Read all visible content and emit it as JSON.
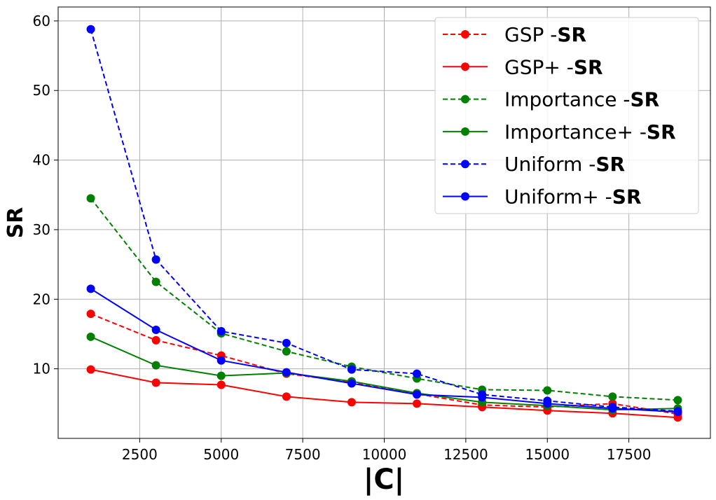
{
  "chart_data": {
    "type": "line",
    "title": "",
    "xlabel": "|C|",
    "ylabel": "SR",
    "xlim": [
      0,
      20000
    ],
    "ylim": [
      0,
      62
    ],
    "xticks": [
      2500,
      5000,
      7500,
      10000,
      12500,
      15000,
      17500
    ],
    "yticks": [
      10,
      20,
      30,
      40,
      50,
      60
    ],
    "grid": true,
    "legend_position": "top-right",
    "x": [
      1000,
      3000,
      5000,
      7000,
      9000,
      11000,
      13000,
      15000,
      17000,
      19000
    ],
    "series": [
      {
        "name": "GSP -",
        "name_bold": "SR",
        "color": "#ff0000",
        "dashed": true,
        "values": [
          17.9,
          14.1,
          11.9,
          9.3,
          8.1,
          6.4,
          4.8,
          4.5,
          5.0,
          3.5
        ]
      },
      {
        "name": "GSP+ -",
        "name_bold": "SR",
        "color": "#ff0000",
        "dashed": false,
        "values": [
          9.9,
          8.0,
          7.7,
          6.0,
          5.2,
          5.0,
          4.5,
          4.0,
          3.6,
          3.0
        ]
      },
      {
        "name": "Importance -",
        "name_bold": "SR",
        "color": "#008000",
        "dashed": true,
        "values": [
          34.5,
          22.5,
          15.1,
          12.5,
          10.3,
          8.6,
          7.0,
          6.9,
          6.0,
          5.5
        ]
      },
      {
        "name": "Importance+ -",
        "name_bold": "SR",
        "color": "#008000",
        "dashed": false,
        "values": [
          14.6,
          10.5,
          9.0,
          9.4,
          8.2,
          6.5,
          5.2,
          4.7,
          4.1,
          4.3
        ]
      },
      {
        "name": "Uniform -",
        "name_bold": "SR",
        "color": "#0000ff",
        "dashed": true,
        "values": [
          58.8,
          25.7,
          15.4,
          13.7,
          9.9,
          9.3,
          6.3,
          5.4,
          4.5,
          3.9
        ]
      },
      {
        "name": "Uniform+ -",
        "name_bold": "SR",
        "color": "#0000ff",
        "dashed": false,
        "values": [
          21.5,
          15.6,
          11.2,
          9.5,
          7.9,
          6.3,
          5.9,
          5.0,
          4.3,
          3.8
        ]
      }
    ]
  }
}
